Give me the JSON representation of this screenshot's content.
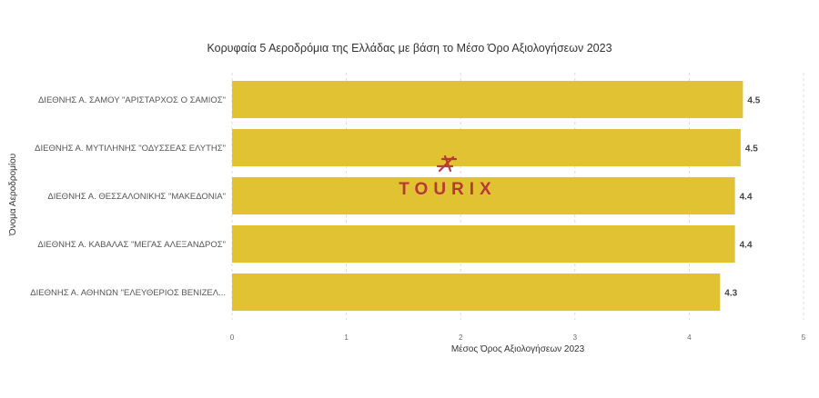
{
  "chart_data": {
    "type": "bar",
    "orientation": "horizontal",
    "title": "Κορυφαία 5 Αεροδρόμια της Ελλάδας με βάση το Μέσο Όρο Αξιολογήσεων 2023",
    "xlabel": "Μέσος Όρος Αξιολογήσεων 2023",
    "ylabel": "Όνομα Αεροδρομίου",
    "xlim": [
      0,
      5
    ],
    "x_ticks": [
      "0",
      "1",
      "2",
      "3",
      "4",
      "5"
    ],
    "categories": [
      "ΔΙΕΘΝΗΣ Α. ΣΑΜΟΥ \"ΑΡΙΣΤΑΡΧΟΣ Ο ΣΑΜΙΟΣ\"",
      "ΔΙΕΘΝΗΣ Α. ΜΥΤΙΛΗΝΗΣ \"ΟΔΥΣΣΕΑΣ ΕΛΥΤΗΣ\"",
      "ΔΙΕΘΝΗΣ Α. ΘΕΣΣΑΛΟΝΙΚΗΣ \"ΜΑΚΕΔΟΝΙΑ\"",
      "ΔΙΕΘΝΗΣ Α. ΚΑΒΑΛΑΣ \"ΜΕΓΑΣ ΑΛΕΞΑΝΔΡΟΣ\"",
      "ΔΙΕΘΝΗΣ Α. ΑΘΗΝΩΝ \"ΕΛΕΥΘΕΡΙΟΣ ΒΕΝΙΖΕΛ..."
    ],
    "values": [
      4.47,
      4.45,
      4.4,
      4.4,
      4.27
    ],
    "value_labels": [
      "4.5",
      "4.5",
      "4.4",
      "4.4",
      "4.3"
    ],
    "bar_color": "#e0c232",
    "grid": true,
    "legend": "none"
  },
  "watermark": {
    "text": "TOURIX",
    "color": "#b52a35"
  }
}
